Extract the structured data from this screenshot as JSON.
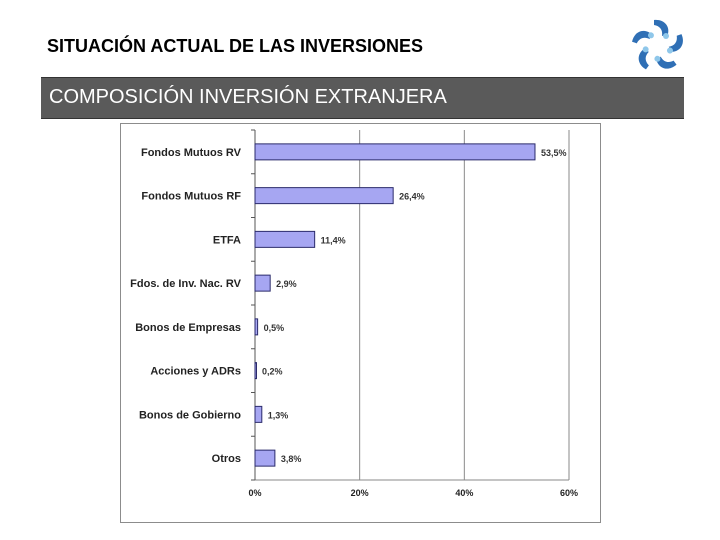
{
  "header": {
    "title": "SITUACIÓN ACTUAL DE LAS INVERSIONES",
    "logo_icon": "hands-star-logo-icon"
  },
  "section": {
    "title": "COMPOSICIÓN INVERSIÓN EXTRANJERA"
  },
  "chart_data": {
    "type": "bar",
    "orientation": "horizontal",
    "categories": [
      "Fondos Mutuos RV",
      "Fondos Mutuos RF",
      "ETFA",
      "Fdos. de Inv. Nac. RV",
      "Bonos de Empresas",
      "Acciones y ADRs",
      "Bonos de Gobierno",
      "Otros"
    ],
    "values": [
      53.5,
      26.4,
      11.4,
      2.9,
      0.5,
      0.2,
      1.3,
      3.8
    ],
    "value_labels": [
      "53,5%",
      "26,4%",
      "11,4%",
      "2,9%",
      "0,5%",
      "0,2%",
      "1,3%",
      "3,8%"
    ],
    "xlim": [
      0,
      60
    ],
    "xticks": [
      0,
      20,
      40,
      60
    ],
    "xtick_labels": [
      "0%",
      "20%",
      "40%",
      "60%"
    ],
    "grid": "vertical",
    "bar_color": "#a6a6f2",
    "bar_edge_color": "#2b2b6b"
  }
}
